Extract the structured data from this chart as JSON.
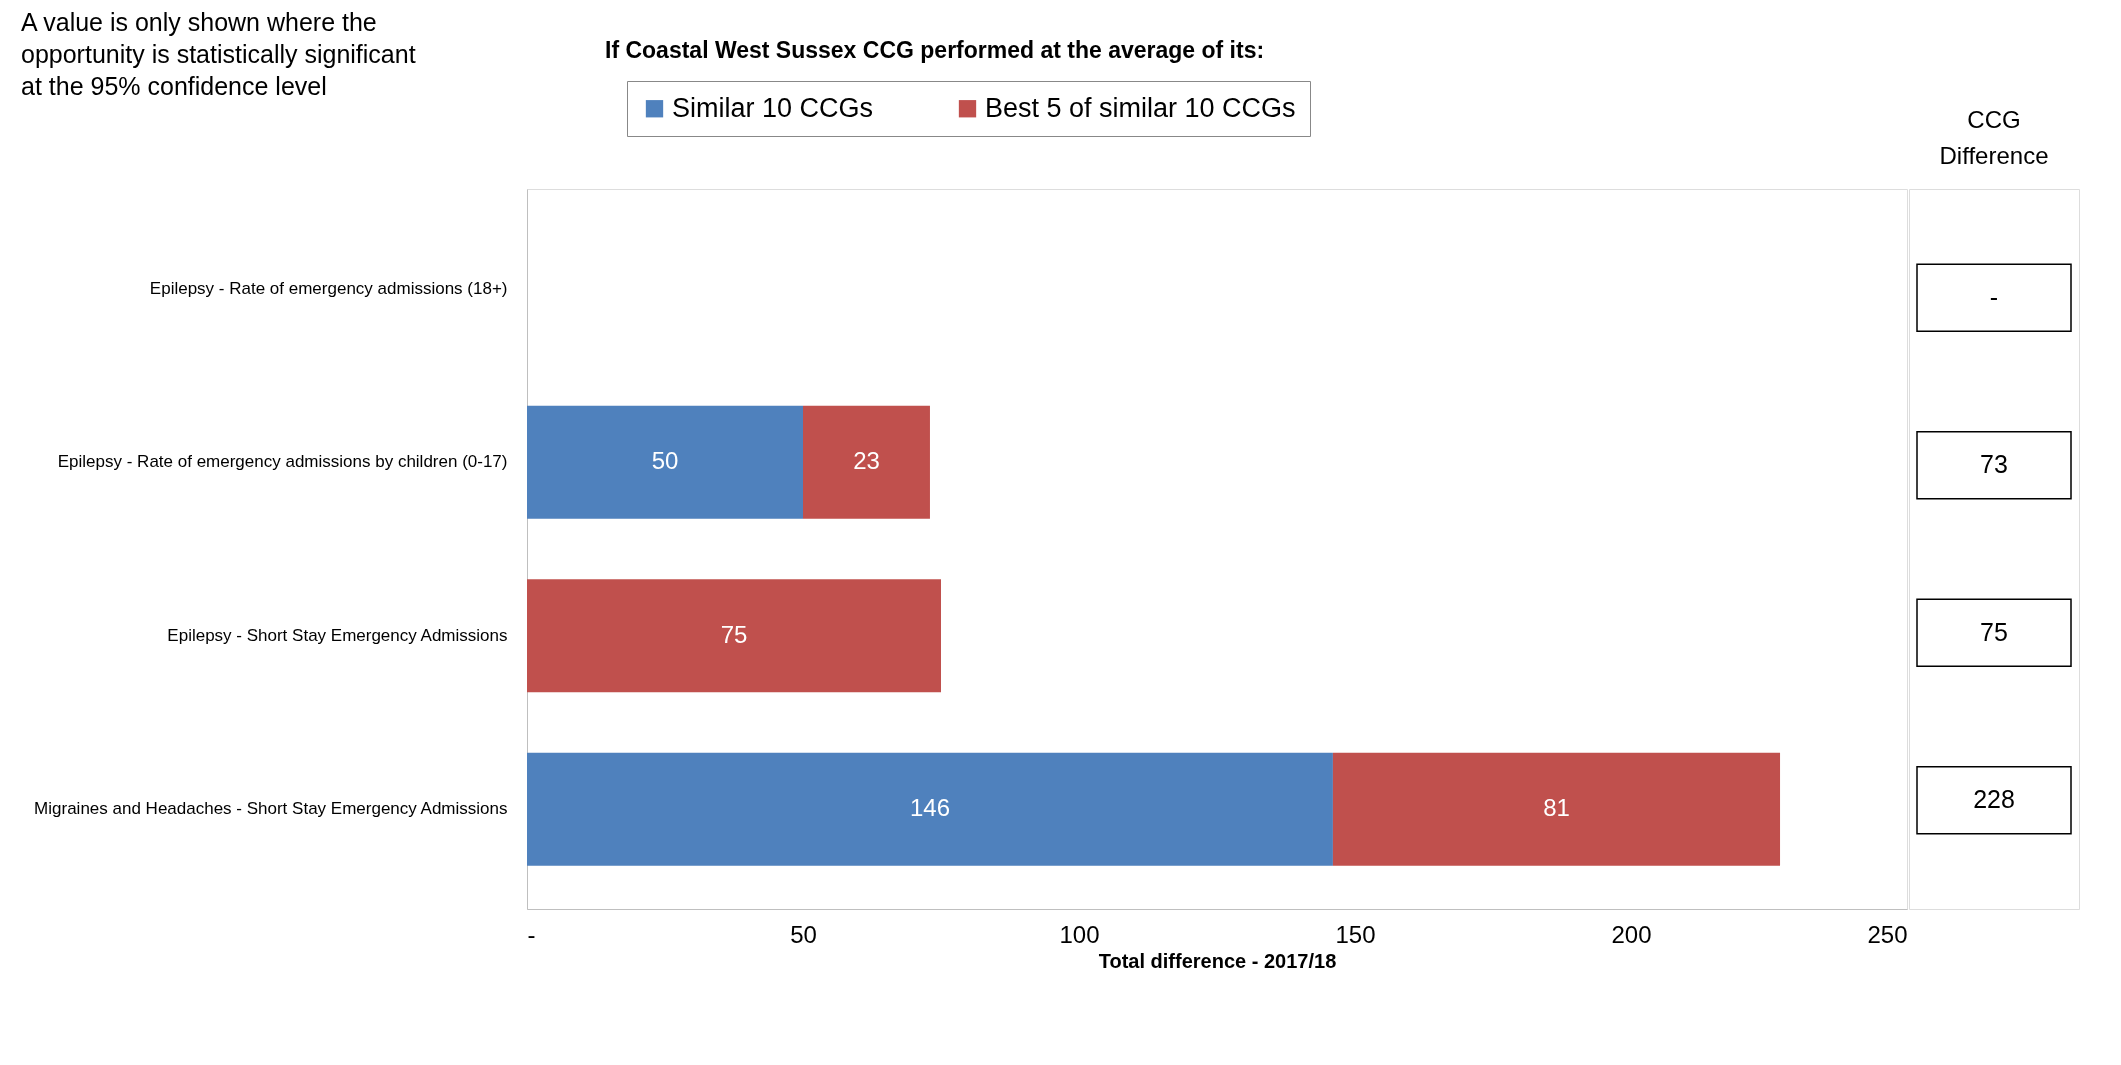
{
  "chart_data": {
    "type": "bar",
    "orientation": "horizontal",
    "stacked": true,
    "title": "If Coastal West Sussex CCG performed at the average of its:",
    "xlabel": "Total difference - 2017/18",
    "categories": [
      "Epilepsy - Rate of emergency admissions (18+)",
      "Epilepsy - Rate of emergency admissions by children (0-17)",
      "Epilepsy - Short Stay Emergency Admissions",
      "Migraines and Headaches - Short Stay Emergency Admissions"
    ],
    "series": [
      {
        "name": "Similar 10 CCGs",
        "color": "#4f81bd",
        "values": [
          null,
          50,
          null,
          146
        ]
      },
      {
        "name": "Best 5 of similar 10 CCGs",
        "color": "#c0504d",
        "values": [
          null,
          23,
          75,
          81
        ]
      }
    ],
    "xlim": [
      0,
      250
    ],
    "xticks": [
      {
        "value": 0,
        "label": "-"
      },
      50,
      100,
      150,
      200,
      250
    ],
    "data_labels": true,
    "annotations": [
      "A value is only shown where the opportunity is statistically significant at the 95% confidence level",
      "CCG Difference",
      "-",
      "73",
      "75",
      "228"
    ],
    "legend": "top",
    "grid": false
  }
}
